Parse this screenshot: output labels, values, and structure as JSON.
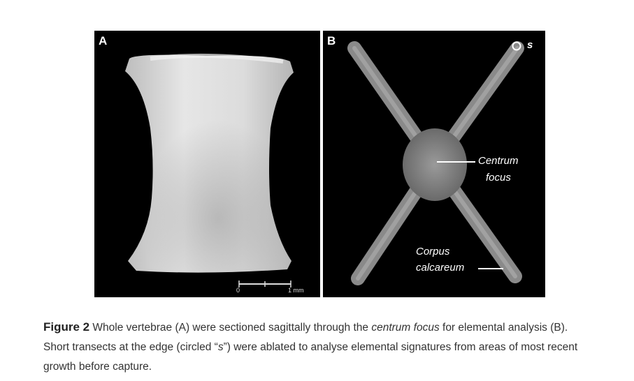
{
  "figure": {
    "panel_a": {
      "letter": "A",
      "scale_start": "0",
      "scale_end": "1 mm"
    },
    "panel_b": {
      "letter": "B",
      "edge_label": "s",
      "centrum_line1": "Centrum",
      "centrum_line2": "focus",
      "corpus_line1": "Corpus",
      "corpus_line2": "calcareum"
    },
    "caption": {
      "label": "Figure 2",
      "part1": " Whole vertebrae (A) were sectioned sagittally through the ",
      "italic": "centrum focus",
      "part2": " for elemental analysis (B). Short transects at the edge (circled “",
      "italic_s": "s",
      "part3": "”) were ablated to analyse elemental signatures from areas of most recent growth before capture."
    }
  }
}
